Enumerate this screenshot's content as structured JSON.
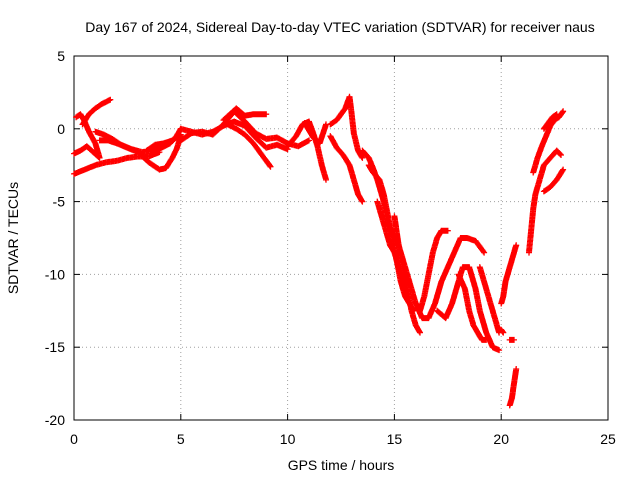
{
  "chart_data": {
    "type": "scatter",
    "title": "Day 167 of 2024, Sidereal Day-to-day VTEC variation (SDTVAR) for receiver naus",
    "xlabel": "GPS time / hours",
    "ylabel": "SDTVAR / TECUs",
    "xlim": [
      0,
      25
    ],
    "ylim": [
      -20,
      5
    ],
    "xticks": [
      0,
      5,
      10,
      15,
      20,
      25
    ],
    "yticks": [
      -20,
      -15,
      -10,
      -5,
      0,
      5
    ],
    "grid": true,
    "marker": "plus",
    "color": "#ff0000",
    "series": [
      {
        "name": "arc-1",
        "points": [
          [
            0.0,
            -1.7
          ],
          [
            0.3,
            -1.5
          ],
          [
            0.6,
            -1.2
          ],
          [
            0.9,
            -1.6
          ],
          [
            1.2,
            -2.0
          ],
          [
            1.0,
            -1.0
          ],
          [
            0.7,
            -0.2
          ],
          [
            0.5,
            0.5
          ],
          [
            0.3,
            1.0
          ],
          [
            0.1,
            0.8
          ]
        ]
      },
      {
        "name": "arc-2",
        "points": [
          [
            0.4,
            0.3
          ],
          [
            0.7,
            1.0
          ],
          [
            1.0,
            1.4
          ],
          [
            1.3,
            1.7
          ],
          [
            1.7,
            2.0
          ]
        ]
      },
      {
        "name": "arc-3",
        "points": [
          [
            0.0,
            -3.1
          ],
          [
            0.5,
            -2.8
          ],
          [
            1.0,
            -2.5
          ],
          [
            1.5,
            -2.3
          ],
          [
            2.0,
            -2.2
          ],
          [
            2.5,
            -2.0
          ],
          [
            3.0,
            -1.9
          ],
          [
            3.5,
            -1.9
          ],
          [
            4.0,
            -1.6
          ]
        ]
      },
      {
        "name": "arc-4",
        "points": [
          [
            1.2,
            -0.8
          ],
          [
            1.6,
            -0.8
          ],
          [
            2.0,
            -1.0
          ],
          [
            2.5,
            -1.3
          ],
          [
            3.0,
            -1.6
          ],
          [
            3.5,
            -2.3
          ],
          [
            4.0,
            -2.8
          ],
          [
            4.3,
            -2.7
          ],
          [
            4.6,
            -2.0
          ],
          [
            4.8,
            -1.4
          ],
          [
            5.0,
            -0.5
          ]
        ]
      },
      {
        "name": "arc-5",
        "points": [
          [
            1.0,
            -0.2
          ],
          [
            1.4,
            -0.4
          ],
          [
            1.8,
            -0.7
          ],
          [
            2.2,
            -1.1
          ],
          [
            2.7,
            -1.4
          ],
          [
            3.2,
            -1.6
          ],
          [
            3.7,
            -1.5
          ],
          [
            4.1,
            -1.3
          ],
          [
            4.5,
            -1.0
          ],
          [
            4.8,
            -0.5
          ],
          [
            5.0,
            0.0
          ]
        ]
      },
      {
        "name": "arc-6",
        "points": [
          [
            3.4,
            -1.5
          ],
          [
            3.8,
            -1.1
          ],
          [
            4.2,
            -1.0
          ],
          [
            4.6,
            -0.8
          ],
          [
            5.0,
            -0.4
          ]
        ]
      },
      {
        "name": "arc-7",
        "points": [
          [
            5.0,
            -0.8
          ],
          [
            5.5,
            -0.3
          ],
          [
            6.0,
            -0.2
          ],
          [
            6.5,
            -0.4
          ],
          [
            7.0,
            0.3
          ],
          [
            7.5,
            1.2
          ],
          [
            8.0,
            0.5
          ],
          [
            8.5,
            -0.3
          ],
          [
            9.0,
            -0.7
          ],
          [
            9.5,
            -0.6
          ],
          [
            10.0,
            -1.0
          ],
          [
            10.5,
            -1.2
          ],
          [
            11.0,
            -0.8
          ]
        ]
      },
      {
        "name": "arc-8",
        "points": [
          [
            5.0,
            0.0
          ],
          [
            5.5,
            -0.2
          ],
          [
            6.0,
            -0.4
          ],
          [
            6.5,
            -0.2
          ],
          [
            7.0,
            0.2
          ],
          [
            7.5,
            0.5
          ],
          [
            8.0,
            0.2
          ],
          [
            8.5,
            -0.6
          ],
          [
            9.0,
            -1.3
          ],
          [
            9.5,
            -1.1
          ],
          [
            10.0,
            -1.4
          ]
        ]
      },
      {
        "name": "arc-9",
        "points": [
          [
            7.0,
            0.6
          ],
          [
            7.3,
            1.0
          ],
          [
            7.6,
            1.4
          ],
          [
            8.0,
            0.9
          ],
          [
            8.4,
            1.0
          ],
          [
            8.7,
            1.0
          ],
          [
            9.0,
            1.0
          ]
        ]
      },
      {
        "name": "arc-10",
        "points": [
          [
            7.2,
            0.3
          ],
          [
            7.6,
            0.0
          ],
          [
            8.0,
            -0.4
          ],
          [
            8.4,
            -1.0
          ],
          [
            8.7,
            -1.6
          ],
          [
            9.0,
            -2.2
          ],
          [
            9.2,
            -2.6
          ]
        ]
      },
      {
        "name": "arc-11",
        "points": [
          [
            10.0,
            -1.2
          ],
          [
            10.4,
            -0.5
          ],
          [
            10.7,
            0.3
          ],
          [
            11.0,
            0.5
          ],
          [
            11.2,
            -0.3
          ],
          [
            11.4,
            -1.2
          ],
          [
            11.6,
            -2.5
          ],
          [
            11.8,
            -3.5
          ]
        ]
      },
      {
        "name": "arc-12",
        "points": [
          [
            10.8,
            0.4
          ],
          [
            11.0,
            -0.1
          ],
          [
            11.2,
            -0.6
          ],
          [
            11.5,
            -1.0
          ],
          [
            11.8,
            0.3
          ]
        ]
      },
      {
        "name": "arc-13",
        "points": [
          [
            12.0,
            -0.5
          ],
          [
            12.3,
            -1.3
          ],
          [
            12.6,
            -1.8
          ],
          [
            12.9,
            -2.5
          ],
          [
            13.1,
            -3.5
          ],
          [
            13.3,
            -4.5
          ],
          [
            13.5,
            -5.0
          ]
        ]
      },
      {
        "name": "arc-14",
        "points": [
          [
            12.0,
            0.3
          ],
          [
            12.3,
            0.6
          ],
          [
            12.5,
            1.0
          ],
          [
            12.7,
            1.4
          ],
          [
            12.9,
            2.2
          ],
          [
            13.0,
            1.0
          ],
          [
            13.1,
            -0.3
          ],
          [
            13.3,
            -1.5
          ],
          [
            13.5,
            -2.0
          ]
        ]
      },
      {
        "name": "arc-15",
        "points": [
          [
            13.5,
            -1.5
          ],
          [
            13.8,
            -2.0
          ],
          [
            14.0,
            -2.7
          ],
          [
            14.2,
            -3.5
          ],
          [
            14.5,
            -5.0
          ],
          [
            14.7,
            -6.5
          ],
          [
            15.0,
            -7.5
          ],
          [
            15.2,
            -8.0
          ],
          [
            15.4,
            -9.5
          ],
          [
            15.6,
            -11.0
          ],
          [
            15.8,
            -12.5
          ],
          [
            16.0,
            -13.5
          ],
          [
            16.2,
            -14.0
          ]
        ]
      },
      {
        "name": "arc-16",
        "points": [
          [
            13.8,
            -2.5
          ],
          [
            14.0,
            -3.0
          ],
          [
            14.3,
            -3.5
          ],
          [
            14.5,
            -4.5
          ],
          [
            14.7,
            -6.0
          ],
          [
            14.9,
            -7.5
          ],
          [
            15.1,
            -9.0
          ],
          [
            15.3,
            -10.5
          ],
          [
            15.5,
            -11.5
          ],
          [
            15.7,
            -12.0
          ],
          [
            15.9,
            -12.5
          ]
        ]
      },
      {
        "name": "arc-17",
        "points": [
          [
            14.2,
            -5.0
          ],
          [
            14.4,
            -6.0
          ],
          [
            14.6,
            -7.0
          ],
          [
            14.8,
            -8.0
          ],
          [
            15.0,
            -8.5
          ],
          [
            15.2,
            -9.5
          ],
          [
            15.4,
            -10.5
          ],
          [
            15.6,
            -11.5
          ]
        ]
      },
      {
        "name": "arc-18",
        "points": [
          [
            15.0,
            -6.0
          ],
          [
            15.1,
            -7.0
          ],
          [
            15.2,
            -8.0
          ],
          [
            15.4,
            -9.0
          ],
          [
            15.6,
            -10.0
          ],
          [
            15.8,
            -11.0
          ],
          [
            16.0,
            -12.0
          ],
          [
            16.2,
            -12.5
          ],
          [
            16.4,
            -11.5
          ],
          [
            16.6,
            -10.0
          ],
          [
            16.8,
            -8.5
          ],
          [
            17.0,
            -7.5
          ],
          [
            17.2,
            -7.0
          ],
          [
            17.5,
            -7.0
          ]
        ]
      },
      {
        "name": "arc-19",
        "points": [
          [
            16.0,
            -12.0
          ],
          [
            16.3,
            -13.0
          ],
          [
            16.6,
            -13.0
          ],
          [
            16.9,
            -12.0
          ],
          [
            17.2,
            -10.5
          ],
          [
            17.5,
            -9.5
          ],
          [
            17.8,
            -8.5
          ],
          [
            18.1,
            -7.5
          ],
          [
            18.4,
            -7.5
          ],
          [
            18.8,
            -7.7
          ],
          [
            19.2,
            -8.5
          ]
        ]
      },
      {
        "name": "arc-20",
        "points": [
          [
            17.0,
            -12.5
          ],
          [
            17.4,
            -13.0
          ],
          [
            17.7,
            -12.0
          ],
          [
            18.0,
            -10.5
          ],
          [
            18.2,
            -9.5
          ],
          [
            18.5,
            -9.5
          ],
          [
            18.8,
            -11.0
          ],
          [
            19.0,
            -12.5
          ],
          [
            19.3,
            -14.0
          ],
          [
            19.6,
            -15.0
          ],
          [
            19.9,
            -15.2
          ]
        ]
      },
      {
        "name": "arc-21",
        "points": [
          [
            18.0,
            -10.0
          ],
          [
            18.3,
            -11.0
          ],
          [
            18.5,
            -12.5
          ],
          [
            18.7,
            -13.5
          ],
          [
            18.9,
            -14.0
          ],
          [
            19.1,
            -14.5
          ],
          [
            19.3,
            -14.5
          ]
        ]
      },
      {
        "name": "arc-22",
        "points": [
          [
            19.0,
            -9.5
          ],
          [
            19.2,
            -10.5
          ],
          [
            19.4,
            -11.5
          ],
          [
            19.6,
            -12.5
          ],
          [
            19.8,
            -13.5
          ],
          [
            19.9,
            -14.0
          ]
        ]
      },
      {
        "name": "arc-23",
        "points": [
          [
            20.0,
            -12.0
          ],
          [
            20.1,
            -11.5
          ],
          [
            20.2,
            -10.5
          ],
          [
            20.3,
            -10.0
          ],
          [
            20.4,
            -9.5
          ],
          [
            20.5,
            -9.0
          ],
          [
            20.6,
            -8.5
          ],
          [
            20.7,
            -8.0
          ]
        ]
      },
      {
        "name": "arc-24",
        "points": [
          [
            20.0,
            -13.8
          ],
          [
            20.1,
            -14.0
          ]
        ]
      },
      {
        "name": "arc-25",
        "points": [
          [
            20.4,
            -14.5
          ],
          [
            20.6,
            -14.5
          ]
        ]
      },
      {
        "name": "arc-26",
        "points": [
          [
            20.4,
            -19.0
          ],
          [
            20.5,
            -18.5
          ],
          [
            20.6,
            -17.5
          ],
          [
            20.7,
            -16.5
          ]
        ]
      },
      {
        "name": "arc-27",
        "points": [
          [
            21.3,
            -8.5
          ],
          [
            21.4,
            -7.0
          ],
          [
            21.5,
            -5.5
          ],
          [
            21.6,
            -4.5
          ],
          [
            21.8,
            -3.5
          ],
          [
            22.0,
            -2.5
          ],
          [
            22.3,
            -2.0
          ],
          [
            22.6,
            -1.5
          ],
          [
            22.8,
            -1.8
          ]
        ]
      },
      {
        "name": "arc-28",
        "points": [
          [
            21.5,
            -3.0
          ],
          [
            21.7,
            -2.0
          ],
          [
            21.9,
            -1.2
          ],
          [
            22.1,
            -0.5
          ],
          [
            22.3,
            0.2
          ],
          [
            22.5,
            0.6
          ],
          [
            22.7,
            0.8
          ],
          [
            22.9,
            1.2
          ]
        ]
      },
      {
        "name": "arc-29",
        "points": [
          [
            22.0,
            -4.3
          ],
          [
            22.3,
            -4.0
          ],
          [
            22.6,
            -3.5
          ],
          [
            22.9,
            -2.8
          ]
        ]
      },
      {
        "name": "arc-30",
        "points": [
          [
            22.0,
            0.0
          ],
          [
            22.2,
            0.4
          ],
          [
            22.4,
            0.8
          ],
          [
            22.6,
            1.0
          ]
        ]
      }
    ]
  }
}
